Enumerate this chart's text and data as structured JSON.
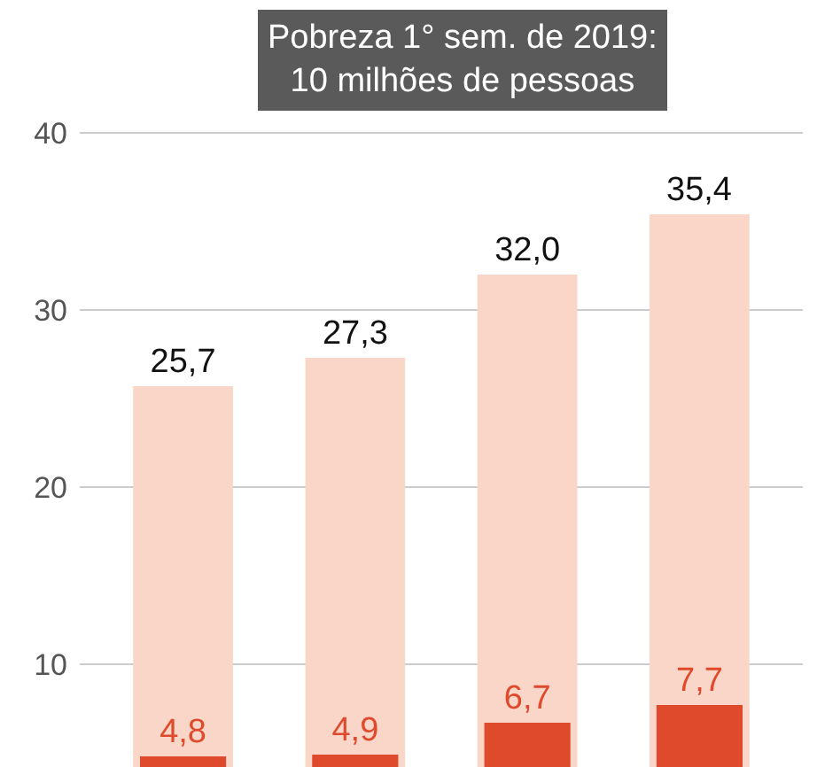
{
  "chart_data": {
    "type": "bar",
    "title": "Pobreza 1° sem. de 2019:\n10 milhões de pessoas",
    "categories": [
      null,
      null,
      null,
      null
    ],
    "series": [
      {
        "color": "#fad6c8",
        "values": [
          25.7,
          27.3,
          32.0,
          35.4
        ],
        "value_labels": [
          "25,7",
          "27,3",
          "32,0",
          "35,4"
        ]
      },
      {
        "color": "#e04a2c",
        "values": [
          4.8,
          4.9,
          6.7,
          7.7
        ],
        "value_labels": [
          "4,8",
          "4,9",
          "6,7",
          "7,7"
        ]
      }
    ],
    "ylim": [
      4.2,
      47
    ],
    "yticks": [
      10,
      20,
      30,
      40
    ],
    "grid": "y"
  }
}
